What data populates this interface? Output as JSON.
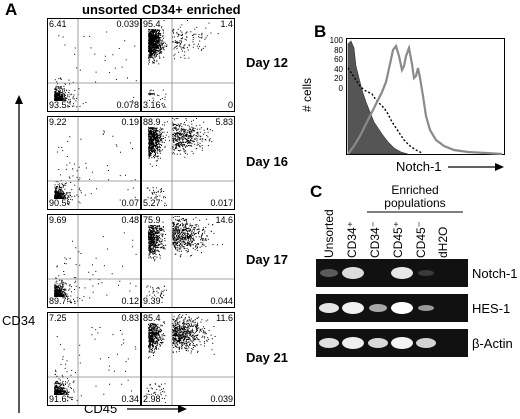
{
  "panelA": {
    "label": "A",
    "col_headers": [
      "unsorted",
      "CD34+ enriched"
    ],
    "y_axis": "CD34",
    "x_axis": "CD45",
    "rows": [
      {
        "day": "Day 12",
        "unsorted": [
          "6.41",
          "0.039",
          "93.5",
          "0.078"
        ],
        "enriched": [
          "95.4",
          "1.4",
          "3.16",
          "0"
        ]
      },
      {
        "day": "Day 16",
        "unsorted": [
          "9.22",
          "0.19",
          "90.5",
          "0.07"
        ],
        "enriched": [
          "88.9",
          "5.83",
          "5.27",
          "0.017"
        ]
      },
      {
        "day": "Day 17",
        "unsorted": [
          "9.69",
          "0.48",
          "89.7",
          "0.12"
        ],
        "enriched": [
          "75.9",
          "14.6",
          "9.39",
          "0.044"
        ]
      },
      {
        "day": "Day 21",
        "unsorted": [
          "7.25",
          "0.83",
          "91.6",
          "0.34"
        ],
        "enriched": [
          "85.4",
          "11.6",
          "2.98",
          "0.039"
        ]
      }
    ]
  },
  "panelB": {
    "label": "B",
    "y_axis": "# cells",
    "y_ticks": [
      "100",
      "80",
      "60",
      "40",
      "20",
      "0"
    ],
    "x_axis": "Notch-1"
  },
  "panelC": {
    "label": "C",
    "group_label": [
      "Enriched",
      "populations"
    ],
    "lanes": [
      "Unsorted",
      "CD34⁺",
      "CD34⁻",
      "CD45⁺",
      "CD45⁻",
      "dH2O"
    ],
    "genes": [
      "Notch-1",
      "HES-1",
      "β-Actin"
    ]
  }
}
